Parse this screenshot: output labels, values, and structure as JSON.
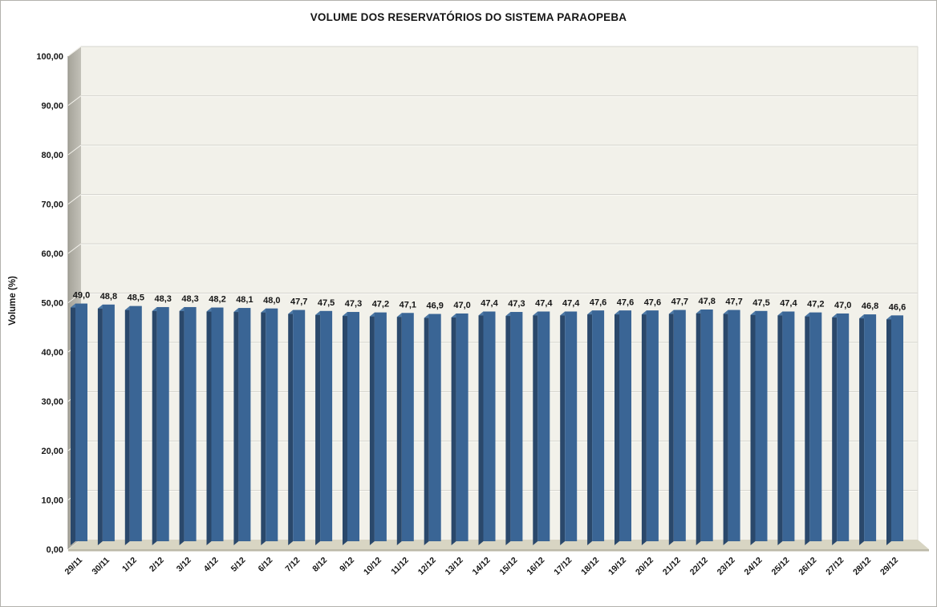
{
  "chart_data": {
    "type": "bar",
    "style": "3d-column",
    "title": "VOLUME DOS RESERVATÓRIOS DO SISTEMA PARAOPEBA",
    "xlabel": "",
    "ylabel": "Volume (%)",
    "ylim": [
      0,
      100
    ],
    "grid": true,
    "legend": "none",
    "y_ticks": [
      "0,00",
      "10,00",
      "20,00",
      "30,00",
      "40,00",
      "50,00",
      "60,00",
      "70,00",
      "80,00",
      "90,00",
      "100,00"
    ],
    "categories": [
      "29/11",
      "30/11",
      "1/12",
      "2/12",
      "3/12",
      "4/12",
      "5/12",
      "6/12",
      "7/12",
      "8/12",
      "9/12",
      "10/12",
      "11/12",
      "12/12",
      "13/12",
      "14/12",
      "15/12",
      "16/12",
      "17/12",
      "18/12",
      "19/12",
      "20/12",
      "21/12",
      "22/12",
      "23/12",
      "24/12",
      "25/12",
      "26/12",
      "27/12",
      "28/12",
      "29/12"
    ],
    "values": [
      49.0,
      48.8,
      48.5,
      48.3,
      48.3,
      48.2,
      48.1,
      48.0,
      47.7,
      47.5,
      47.3,
      47.2,
      47.1,
      46.9,
      47.0,
      47.4,
      47.3,
      47.4,
      47.4,
      47.6,
      47.6,
      47.6,
      47.7,
      47.8,
      47.7,
      47.5,
      47.4,
      47.2,
      47.0,
      46.8,
      46.6
    ],
    "value_labels": [
      "49,0",
      "48,8",
      "48,5",
      "48,3",
      "48,3",
      "48,2",
      "48,1",
      "48,0",
      "47,7",
      "47,5",
      "47,3",
      "47,2",
      "47,1",
      "46,9",
      "47,0",
      "47,4",
      "47,3",
      "47,4",
      "47,4",
      "47,6",
      "47,6",
      "47,6",
      "47,7",
      "47,8",
      "47,7",
      "47,5",
      "47,4",
      "47,2",
      "47,0",
      "46,8",
      "46,6"
    ],
    "colors": {
      "bar_front": "#3a6595",
      "bar_side": "#2a486b",
      "bar_top": "#4d79a6",
      "back_wall": "#f2f1ea",
      "side_wall_dark": "#a5a399",
      "side_wall_light": "#c3c1b8",
      "wall_edge": "#96948b",
      "floor": "#d8d5c3",
      "floor_lip": "#bcb9a8",
      "gridline": "#d6d5cf",
      "gridline_highlight": "#fbfaf6",
      "text": "#151515"
    }
  }
}
